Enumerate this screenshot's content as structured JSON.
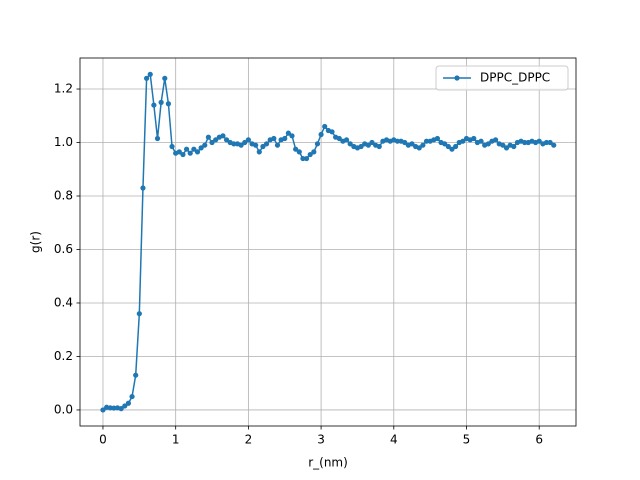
{
  "chart_data": {
    "type": "line",
    "xlabel": "r_(nm)",
    "ylabel": "g(r)",
    "x": [
      0,
      0.05,
      0.1,
      0.15,
      0.2,
      0.25,
      0.3,
      0.35,
      0.4,
      0.45,
      0.5,
      0.55,
      0.6,
      0.65,
      0.7,
      0.75,
      0.8,
      0.85,
      0.9,
      0.95,
      1.0,
      1.05,
      1.1,
      1.15,
      1.2,
      1.25,
      1.3,
      1.35,
      1.4,
      1.45,
      1.5,
      1.55,
      1.6,
      1.65,
      1.7,
      1.75,
      1.8,
      1.85,
      1.9,
      1.95,
      2.0,
      2.05,
      2.1,
      2.15,
      2.2,
      2.25,
      2.3,
      2.35,
      2.4,
      2.45,
      2.5,
      2.55,
      2.6,
      2.65,
      2.7,
      2.75,
      2.8,
      2.85,
      2.9,
      2.95,
      3.0,
      3.05,
      3.1,
      3.15,
      3.2,
      3.25,
      3.3,
      3.35,
      3.4,
      3.45,
      3.5,
      3.55,
      3.6,
      3.65,
      3.7,
      3.75,
      3.8,
      3.85,
      3.9,
      3.95,
      4.0,
      4.05,
      4.1,
      4.15,
      4.2,
      4.25,
      4.3,
      4.35,
      4.4,
      4.45,
      4.5,
      4.55,
      4.6,
      4.65,
      4.7,
      4.75,
      4.8,
      4.85,
      4.9,
      4.95,
      5.0,
      5.05,
      5.1,
      5.15,
      5.2,
      5.25,
      5.3,
      5.35,
      5.4,
      5.45,
      5.5,
      5.55,
      5.6,
      5.65,
      5.7,
      5.75,
      5.8,
      5.85,
      5.9,
      5.95,
      6.0,
      6.05,
      6.1,
      6.15,
      6.2
    ],
    "series": [
      {
        "name": "DPPC_DPPC",
        "color": "#1f77b4",
        "values": [
          0.0,
          0.01,
          0.008,
          0.007,
          0.008,
          0.005,
          0.015,
          0.025,
          0.05,
          0.13,
          0.36,
          0.83,
          1.24,
          1.255,
          1.14,
          1.015,
          1.15,
          1.24,
          1.145,
          0.985,
          0.96,
          0.965,
          0.955,
          0.975,
          0.96,
          0.975,
          0.965,
          0.98,
          0.99,
          1.02,
          1.0,
          1.01,
          1.02,
          1.025,
          1.01,
          1.0,
          0.995,
          0.995,
          0.99,
          1.0,
          1.01,
          0.995,
          0.99,
          0.965,
          0.985,
          0.995,
          1.01,
          1.015,
          0.99,
          1.01,
          1.015,
          1.035,
          1.025,
          0.975,
          0.965,
          0.94,
          0.94,
          0.955,
          0.965,
          0.995,
          1.03,
          1.06,
          1.045,
          1.04,
          1.02,
          1.015,
          1.005,
          1.01,
          0.995,
          0.985,
          0.98,
          0.985,
          0.995,
          0.99,
          1.0,
          0.99,
          0.985,
          1.005,
          1.01,
          1.005,
          1.01,
          1.005,
          1.005,
          1.0,
          0.99,
          0.995,
          0.985,
          0.98,
          0.99,
          1.005,
          1.005,
          1.01,
          1.015,
          1.0,
          0.995,
          0.985,
          0.975,
          0.985,
          1.0,
          1.005,
          1.015,
          1.01,
          1.015,
          1.0,
          1.005,
          0.99,
          0.995,
          1.005,
          1.01,
          0.995,
          0.99,
          0.98,
          0.99,
          0.985,
          1.0,
          1.005,
          1.0,
          1.0,
          1.005,
          1.0,
          1.005,
          0.995,
          1.0,
          1.0,
          0.99
        ]
      }
    ],
    "xlim": [
      -0.316,
      6.506
    ],
    "ylim": [
      -0.06,
      1.316
    ],
    "xticks": [
      0,
      1,
      2,
      3,
      4,
      5,
      6
    ],
    "yticks": [
      {
        "value": 0,
        "label": "0.0"
      },
      0.2,
      0.4,
      0.6,
      0.8,
      {
        "value": 1,
        "label": "1.0"
      },
      1.2
    ],
    "grid": true,
    "legend": "upper right"
  }
}
